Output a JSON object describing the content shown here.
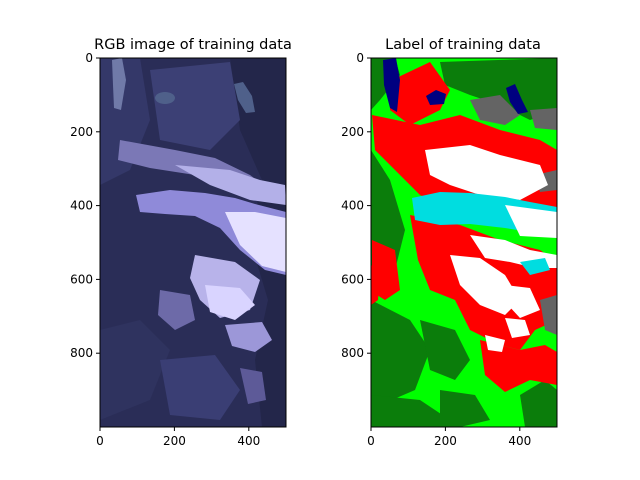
{
  "chart_data": [
    {
      "type": "image",
      "title": "RGB image of training data",
      "xlim": [
        0,
        500
      ],
      "ylim": [
        1000,
        0
      ],
      "xticks": [
        0,
        200,
        400
      ],
      "yticks": [
        0,
        200,
        400,
        600,
        800
      ],
      "xtick_labels": [
        "0",
        "200",
        "400"
      ],
      "ytick_labels": [
        "0",
        "200",
        "400",
        "600",
        "800"
      ],
      "colors": {
        "dark_forest": "#262a4f",
        "mid": "#3b3f7a",
        "rock": "#6c6aa8",
        "bright": "#a7a4e0",
        "snow": "#e7e3ff",
        "glacier": "#8e88d8",
        "lake": "#5a6a8a",
        "river": "#7c87b5"
      }
    },
    {
      "type": "image",
      "title": "Label of training data",
      "xlim": [
        0,
        500
      ],
      "ylim": [
        1000,
        0
      ],
      "xticks": [
        0,
        200,
        400
      ],
      "yticks": [
        0,
        200,
        400,
        600,
        800
      ],
      "xtick_labels": [
        "0",
        "200",
        "400"
      ],
      "ytick_labels": [
        "0",
        "200",
        "400",
        "600",
        "800"
      ],
      "colors": {
        "forest": "#0b7d0b",
        "vegetation": "#00ff00",
        "rock": "#ff0000",
        "snow": "#ffffff",
        "ice": "#00dde0",
        "debris": "#646464",
        "water": "#000080"
      }
    }
  ]
}
